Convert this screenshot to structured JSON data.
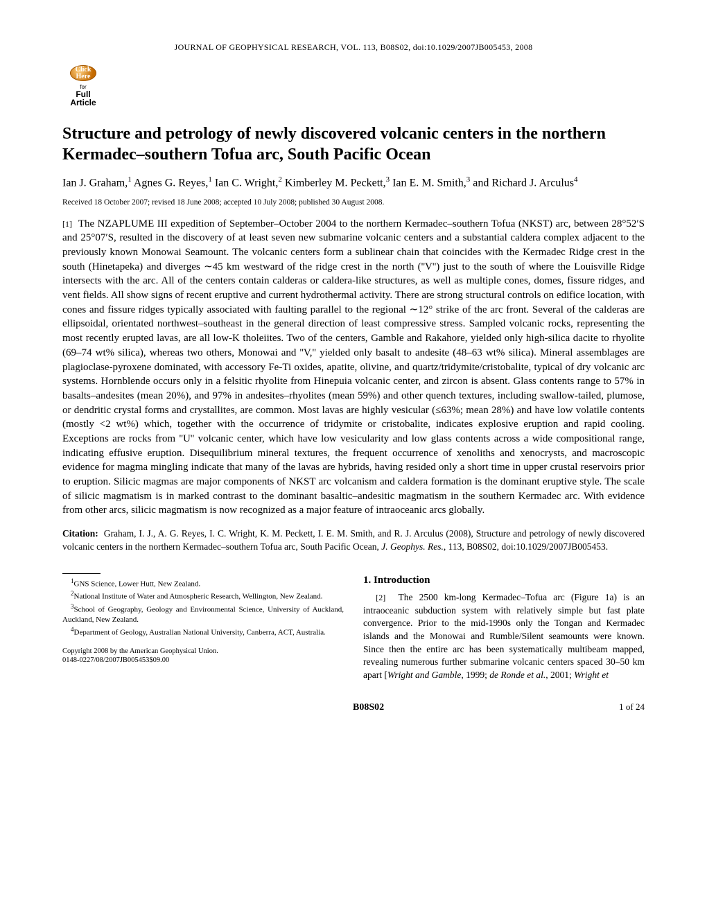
{
  "journal_header": "JOURNAL OF GEOPHYSICAL RESEARCH, VOL. 113, B08S02, doi:10.1029/2007JB005453, 2008",
  "badge": {
    "circ_line1": "Click",
    "circ_line2": "Here",
    "for": "for",
    "full": "Full",
    "article": "Article"
  },
  "title": "Structure and petrology of newly discovered volcanic centers in the northern Kermadec–southern Tofua arc, South Pacific Ocean",
  "authors_html": "Ian J. Graham,<sup>1</sup> Agnes G. Reyes,<sup>1</sup> Ian C. Wright,<sup>2</sup> Kimberley M. Peckett,<sup>3</sup> Ian E. M. Smith,<sup>3</sup> and Richard J. Arculus<sup>4</sup>",
  "received": "Received 18 October 2007; revised 18 June 2008; accepted 10 July 2008; published 30 August 2008.",
  "abstract_para_num": "[1]",
  "abstract_text": "The NZAPLUME III expedition of September–October 2004 to the northern Kermadec–southern Tofua (NKST) arc, between 28°52′S and 25°07′S, resulted in the discovery of at least seven new submarine volcanic centers and a substantial caldera complex adjacent to the previously known Monowai Seamount. The volcanic centers form a sublinear chain that coincides with the Kermadec Ridge crest in the south (Hinetapeka) and diverges ∼45 km westward of the ridge crest in the north (''V'') just to the south of where the Louisville Ridge intersects with the arc. All of the centers contain calderas or caldera-like structures, as well as multiple cones, domes, fissure ridges, and vent fields. All show signs of recent eruptive and current hydrothermal activity. There are strong structural controls on edifice location, with cones and fissure ridges typically associated with faulting parallel to the regional ∼12° strike of the arc front. Several of the calderas are ellipsoidal, orientated northwest–southeast in the general direction of least compressive stress. Sampled volcanic rocks, representing the most recently erupted lavas, are all low-K tholeiites. Two of the centers, Gamble and Rakahore, yielded only high-silica dacite to rhyolite (69–74 wt% silica), whereas two others, Monowai and ''V,'' yielded only basalt to andesite (48–63 wt% silica). Mineral assemblages are plagioclase-pyroxene dominated, with accessory Fe-Ti oxides, apatite, olivine, and quartz/tridymite/cristobalite, typical of dry volcanic arc systems. Hornblende occurs only in a felsitic rhyolite from Hinepuia volcanic center, and zircon is absent. Glass contents range to 57% in basalts–andesites (mean 20%), and 97% in andesites–rhyolites (mean 59%) and other quench textures, including swallow-tailed, plumose, or dendritic crystal forms and crystallites, are common. Most lavas are highly vesicular (≤63%; mean 28%) and have low volatile contents (mostly <2 wt%) which, together with the occurrence of tridymite or cristobalite, indicates explosive eruption and rapid cooling. Exceptions are rocks from ''U'' volcanic center, which have low vesicularity and low glass contents across a wide compositional range, indicating effusive eruption. Disequilibrium mineral textures, the frequent occurrence of xenoliths and xenocrysts, and macroscopic evidence for magma mingling indicate that many of the lavas are hybrids, having resided only a short time in upper crustal reservoirs prior to eruption. Silicic magmas are major components of NKST arc volcanism and caldera formation is the dominant eruptive style. The scale of silicic magmatism is in marked contrast to the dominant basaltic–andesitic magmatism in the southern Kermadec arc. With evidence from other arcs, silicic magmatism is now recognized as a major feature of intraoceanic arcs globally.",
  "citation_label": "Citation:",
  "citation_text": "Graham, I. J., A. G. Reyes, I. C. Wright, K. M. Peckett, I. E. M. Smith, and R. J. Arculus (2008), Structure and petrology of newly discovered volcanic centers in the northern Kermadec–southern Tofua arc, South Pacific Ocean, ",
  "citation_journal": "J. Geophys. Res.",
  "citation_tail": ", 113, B08S02, doi:10.1029/2007JB005453.",
  "affiliations": [
    "GNS Science, Lower Hutt, New Zealand.",
    "National Institute of Water and Atmospheric Research, Wellington, New Zealand.",
    "School of Geography, Geology and Environmental Science, University of Auckland, Auckland, New Zealand.",
    "Department of Geology, Australian National University, Canberra, ACT, Australia."
  ],
  "copyright_line1": "Copyright 2008 by the American Geophysical Union.",
  "copyright_line2": "0148-0227/08/2007JB005453$09.00",
  "intro_head": "1.   Introduction",
  "intro_para_num": "[2]",
  "intro_text_1": "The 2500 km-long Kermadec–Tofua arc (Figure 1a) is an intraoceanic subduction system with relatively simple but fast plate convergence. Prior to the mid-1990s only the Tongan and Kermadec islands and the Monowai and Rumble/Silent seamounts were known. Since then the entire arc has been systematically multibeam mapped, revealing numerous further submarine volcanic centers spaced 30–50 km apart [",
  "intro_cite_1": "Wright and Gamble",
  "intro_text_2": ", 1999; ",
  "intro_cite_2": "de Ronde et al.",
  "intro_text_3": ", 2001; ",
  "intro_cite_3": "Wright et",
  "footer_code": "B08S02",
  "footer_page": "1 of 24"
}
